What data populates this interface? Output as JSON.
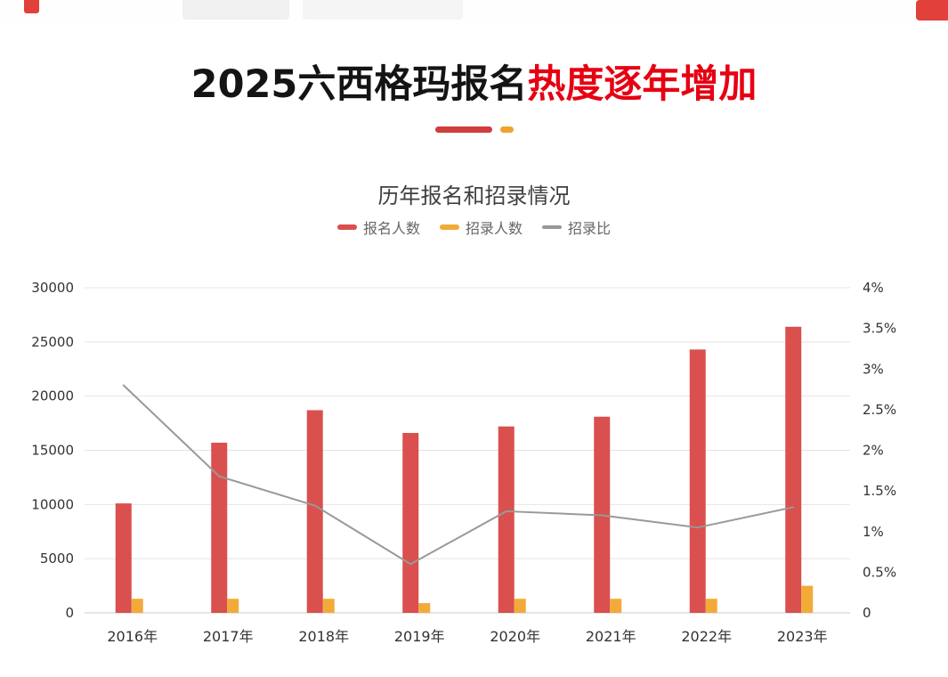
{
  "header": {
    "title_black": "2025六西格玛报名",
    "title_red": "热度逐年增加"
  },
  "colors": {
    "title_accent": "#e60012",
    "underline_red": "#cf3d3d",
    "underline_orange": "#f0a32f",
    "banner_red": "#e2403a",
    "bar_red": "#d9504e",
    "bar_yellow": "#f2ab39",
    "line_gray": "#999999",
    "gridline": "#e4e4e4",
    "axis_text": "#333333"
  },
  "chart_data": {
    "type": "bar",
    "title": "历年报名和招录情况",
    "categories": [
      "2016年",
      "2017年",
      "2018年",
      "2019年",
      "2020年",
      "2021年",
      "2022年",
      "2023年"
    ],
    "series": [
      {
        "key": "applicants",
        "name": "报名人数",
        "type": "bar",
        "axis": "left",
        "color": "#d9504e",
        "values": [
          10100,
          15700,
          18700,
          16600,
          17200,
          18100,
          24300,
          26400
        ]
      },
      {
        "key": "admitted",
        "name": "招录人数",
        "type": "bar",
        "axis": "left",
        "color": "#f2ab39",
        "values": [
          1300,
          1300,
          1300,
          900,
          1300,
          1300,
          1300,
          2500
        ]
      },
      {
        "key": "ratio",
        "name": "招录比",
        "type": "line",
        "axis": "right",
        "color": "#999999",
        "values": [
          2.8,
          1.68,
          1.32,
          0.6,
          1.25,
          1.2,
          1.05,
          1.3
        ]
      }
    ],
    "left_axis": {
      "min": 0,
      "max": 30000,
      "ticks": [
        "0",
        "5000",
        "10000",
        "15000",
        "20000",
        "25000",
        "30000"
      ]
    },
    "right_axis": {
      "min": 0,
      "max": 4,
      "ticks": [
        "0",
        "0.5%",
        "1%",
        "1.5%",
        "2%",
        "2.5%",
        "3%",
        "3.5%",
        "4%"
      ]
    },
    "legend": [
      {
        "key": "applicants",
        "label": "报名人数",
        "color": "#d9504e",
        "marker": "bar"
      },
      {
        "key": "admitted",
        "label": "招录人数",
        "color": "#f2ab39",
        "marker": "bar"
      },
      {
        "key": "ratio",
        "label": "招录比",
        "color": "#999999",
        "marker": "line"
      }
    ],
    "grid": true,
    "legend_position": "top"
  }
}
